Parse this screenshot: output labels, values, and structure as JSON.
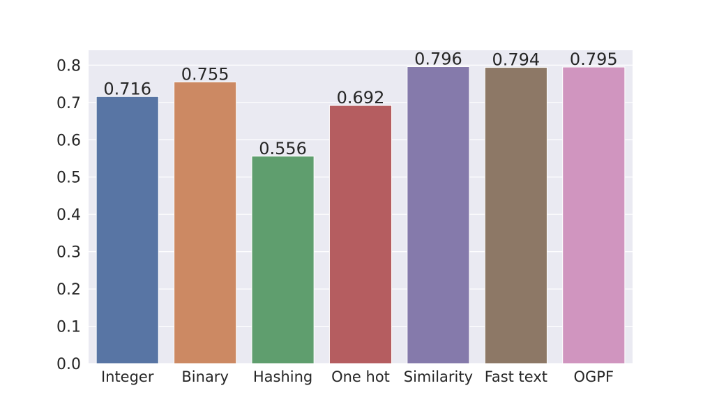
{
  "chart_data": {
    "type": "bar",
    "title": "",
    "xlabel": "",
    "ylabel": "",
    "categories": [
      "Integer",
      "Binary",
      "Hashing",
      "One hot",
      "Similarity",
      "Fast text",
      "OGPF"
    ],
    "values": [
      0.716,
      0.755,
      0.556,
      0.692,
      0.796,
      0.794,
      0.795
    ],
    "data_labels": [
      "0.716",
      "0.755",
      "0.556",
      "0.692",
      "0.796",
      "0.794",
      "0.795"
    ],
    "colors": [
      "#5875a4",
      "#cc8963",
      "#5f9e6e",
      "#b55d60",
      "#857aab",
      "#8d7866",
      "#d095bf"
    ],
    "ylim": [
      0,
      0.84
    ],
    "yticks": [
      0.0,
      0.1,
      0.2,
      0.3,
      0.4,
      0.5,
      0.6,
      0.7,
      0.8
    ],
    "ytick_labels": [
      "0.0",
      "0.1",
      "0.2",
      "0.3",
      "0.4",
      "0.5",
      "0.6",
      "0.7",
      "0.8"
    ],
    "grid": true,
    "background": "#eaeaf2",
    "grid_color": "#ffffff"
  }
}
